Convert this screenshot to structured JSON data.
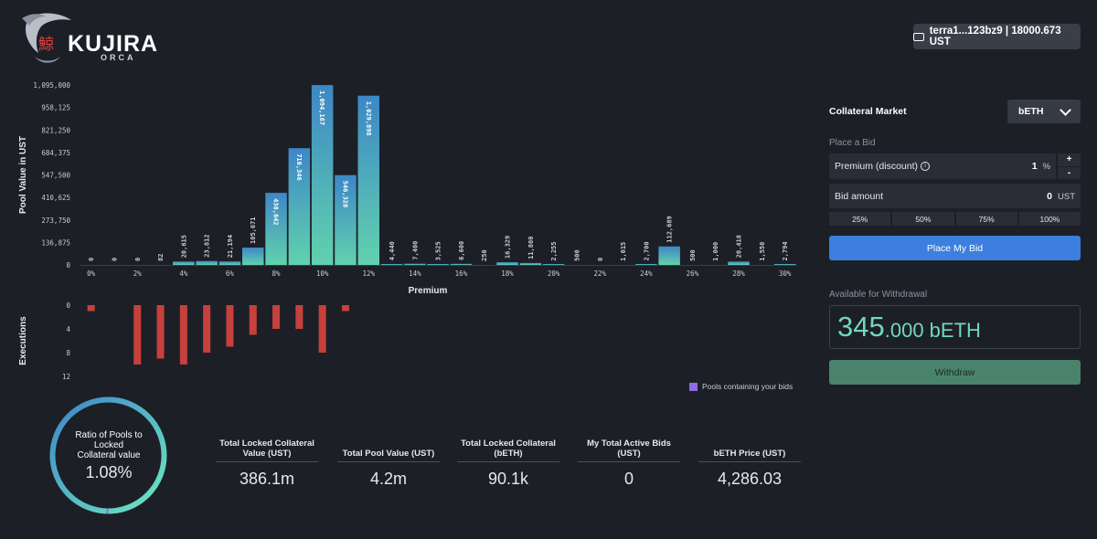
{
  "header": {
    "brand": "KUJIRA",
    "brand_sub": "ORCA",
    "logo_glyph": "鯨",
    "wallet": "terra1...123bz9 | 18000.673 UST",
    "wallet_icon": "wallet-icon"
  },
  "chart_data": [
    {
      "type": "bar",
      "ylabel": "Pool Value in UST",
      "xlabel": "Premium",
      "ylim": [
        0,
        1095000
      ],
      "y_ticks": [
        "1,095,000",
        "958,125",
        "821,250",
        "684,375",
        "547,500",
        "410,625",
        "273,750",
        "136,875",
        "0"
      ],
      "x_ticks": [
        "0%",
        "2%",
        "4%",
        "6%",
        "8%",
        "10%",
        "12%",
        "14%",
        "16%",
        "18%",
        "20%",
        "22%",
        "24%",
        "26%",
        "28%",
        "30%"
      ],
      "categories": [
        "0%",
        "1%",
        "2%",
        "3%",
        "4%",
        "5%",
        "6%",
        "7%",
        "8%",
        "9%",
        "10%",
        "11%",
        "12%",
        "13%",
        "14%",
        "15%",
        "16%",
        "17%",
        "18%",
        "19%",
        "20%",
        "21%",
        "22%",
        "23%",
        "24%",
        "25%",
        "26%",
        "27%",
        "28%",
        "29%",
        "30%"
      ],
      "values": [
        0,
        0,
        0,
        82,
        20615,
        23812,
        21194,
        105671,
        438642,
        710346,
        1094167,
        546328,
        1029898,
        4440,
        7400,
        3525,
        6600,
        250,
        16329,
        11800,
        2255,
        500,
        0,
        1015,
        2700,
        112689,
        500,
        1000,
        20418,
        1550,
        2794
      ],
      "labels": [
        "0",
        "0",
        "0",
        "82",
        "20,615",
        "23,812",
        "21,194",
        "105,671",
        "438,642",
        "710,346",
        "1,094,167",
        "546,328",
        "1,029,898",
        "4,440",
        "7,400",
        "3,525",
        "6,600",
        "250",
        "16,329",
        "11,800",
        "2,255",
        "500",
        "0",
        "1,015",
        "2,700",
        "112,689",
        "500",
        "1,000",
        "20,418",
        "1,550",
        "2,794"
      ],
      "colors": {
        "top": "#3d87c7",
        "bottom": "#61d2ad"
      }
    },
    {
      "type": "bar",
      "ylabel": "Executions",
      "ylim": [
        0,
        12
      ],
      "y_ticks": [
        "0",
        "4",
        "8",
        "12"
      ],
      "values": [
        1,
        0,
        10,
        9,
        10,
        8,
        7,
        5,
        4,
        4,
        8,
        1,
        0,
        0,
        0,
        0,
        0,
        0,
        0,
        0,
        0,
        0,
        0,
        0,
        0,
        0,
        0,
        0,
        0,
        0,
        0
      ],
      "color": "#c7403b",
      "legend": "Pools containing your bids",
      "legend_color": "#8f6ce8"
    }
  ],
  "panel": {
    "collateral_market_label": "Collateral Market",
    "collateral_market_value": "bETH",
    "place_bid_label": "Place a Bid",
    "premium_label": "Premium (discount)",
    "premium_value": "1",
    "premium_unit": "%",
    "plus": "+",
    "minus": "-",
    "bid_amount_label": "Bid amount",
    "bid_amount_value": "0",
    "bid_amount_unit": "UST",
    "percent_buttons": [
      "25%",
      "50%",
      "75%",
      "100%"
    ],
    "place_bid_button": "Place My Bid",
    "available_label": "Available for Withdrawal",
    "available_int": "345",
    "available_dec": ".000 bETH",
    "withdraw_button": "Withdraw"
  },
  "ratio": {
    "line1": "Ratio of Pools to",
    "line2": "Locked",
    "line3": "Collateral value",
    "value": "1.08%",
    "fraction": 0.0108
  },
  "stats": [
    {
      "label_lines": [
        "Total Locked Collateral",
        "Value (UST)"
      ],
      "value": "386.1m"
    },
    {
      "label_lines": [
        "Total Pool Value (UST)"
      ],
      "value": "4.2m"
    },
    {
      "label_lines": [
        "Total Locked Collateral",
        "(bETH)"
      ],
      "value": "90.1k"
    },
    {
      "label_lines": [
        "My Total Active Bids",
        "(UST)"
      ],
      "value": "0"
    },
    {
      "label_lines": [
        "bETH Price (UST)"
      ],
      "value": "4,286.03"
    }
  ]
}
